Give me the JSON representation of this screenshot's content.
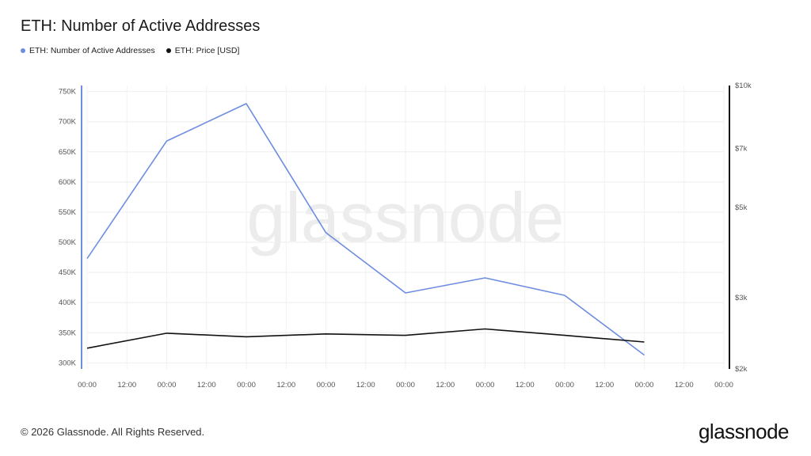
{
  "title": "ETH: Number of Active Addresses",
  "legend": [
    {
      "label": "ETH: Number of Active Addresses",
      "color": "#6f8de0"
    },
    {
      "label": "ETH: Price [USD]",
      "color": "#111111"
    }
  ],
  "watermark": "glassnode",
  "footer": "© 2026 Glassnode. All Rights Reserved.",
  "brand": "glassnode",
  "chart_data": {
    "type": "line",
    "x_tick_labels": [
      "00:00",
      "12:00",
      "00:00",
      "12:00",
      "00:00",
      "12:00",
      "00:00",
      "12:00",
      "00:00",
      "12:00",
      "00:00",
      "12:00",
      "00:00",
      "12:00",
      "00:00",
      "12:00",
      "00:00"
    ],
    "left_axis": {
      "ticks": [
        300000,
        350000,
        400000,
        450000,
        500000,
        550000,
        600000,
        650000,
        700000,
        750000
      ],
      "tick_labels": [
        "300K",
        "350K",
        "400K",
        "450K",
        "500K",
        "550K",
        "600K",
        "650K",
        "700K",
        "750K"
      ],
      "ylim": [
        290000,
        760000
      ]
    },
    "right_axis": {
      "scale": "log",
      "ticks": [
        2000,
        3000,
        5000,
        7000,
        10000
      ],
      "tick_labels": [
        "$2k",
        "$3k",
        "$5k",
        "$7k",
        "$10k"
      ],
      "ylim": [
        2000,
        10000
      ]
    },
    "series": [
      {
        "name": "ETH: Number of Active Addresses",
        "color": "#6f8de0",
        "axis": "left",
        "x": [
          0,
          2,
          4,
          6,
          8,
          10,
          12,
          14
        ],
        "values": [
          473000,
          668000,
          730000,
          516000,
          416000,
          441000,
          412000,
          313000
        ]
      },
      {
        "name": "ETH: Price [USD]",
        "color": "#111111",
        "axis": "right",
        "x": [
          0,
          2,
          4,
          6,
          8,
          10,
          12,
          14
        ],
        "values": [
          2250,
          2450,
          2400,
          2440,
          2420,
          2510,
          2420,
          2330
        ]
      }
    ],
    "grid": true
  }
}
